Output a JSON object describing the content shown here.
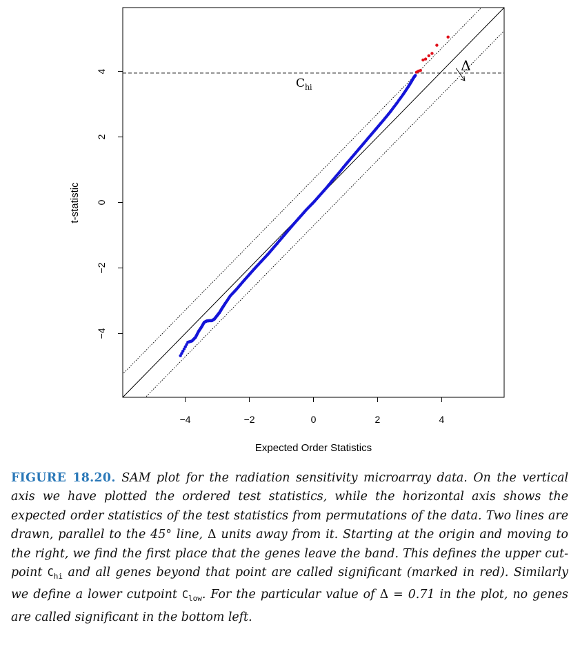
{
  "chart_data": {
    "type": "scatter",
    "xlabel": "Expected Order Statistics",
    "ylabel": "t-statistic",
    "xlim": [
      -5.95,
      5.95
    ],
    "ylim": [
      -5.95,
      5.95
    ],
    "x_ticks": [
      -4,
      -2,
      0,
      2,
      4
    ],
    "y_ticks": [
      -4,
      -2,
      0,
      2,
      4
    ],
    "grid": false,
    "delta": 0.71,
    "c_hi": 3.95,
    "c_hi_label": "C",
    "c_hi_sub": "hi",
    "delta_label": "Δ",
    "colors": {
      "significant": "#e0101a",
      "not_significant": "#1414d8",
      "lines": "#000000"
    },
    "band_lines": [
      {
        "name": "45-degree",
        "intercept": 0
      },
      {
        "name": "upper band",
        "intercept": 0.71
      },
      {
        "name": "lower band",
        "intercept": -0.71
      }
    ],
    "series": [
      {
        "category": "not significant",
        "points": [
          [
            -4.15,
            -4.68
          ],
          [
            -3.92,
            -4.27
          ],
          [
            -3.79,
            -4.23
          ],
          [
            -3.68,
            -4.12
          ],
          [
            -3.58,
            -3.93
          ],
          [
            -3.49,
            -3.8
          ],
          [
            -3.41,
            -3.66
          ],
          [
            -3.33,
            -3.62
          ],
          [
            -3.25,
            -3.61
          ],
          [
            -3.17,
            -3.61
          ],
          [
            -3.09,
            -3.56
          ],
          [
            -3.01,
            -3.46
          ],
          [
            -2.93,
            -3.36
          ],
          [
            -2.85,
            -3.23
          ],
          [
            -2.75,
            -3.08
          ],
          [
            -2.6,
            -2.86
          ],
          [
            -2.4,
            -2.65
          ],
          [
            -2.2,
            -2.42
          ],
          [
            -2.0,
            -2.2
          ],
          [
            -1.8,
            -1.98
          ],
          [
            -1.6,
            -1.77
          ],
          [
            -1.4,
            -1.56
          ],
          [
            -1.2,
            -1.33
          ],
          [
            -1.0,
            -1.1
          ],
          [
            -0.8,
            -0.87
          ],
          [
            -0.6,
            -0.64
          ],
          [
            -0.4,
            -0.42
          ],
          [
            -0.2,
            -0.2
          ],
          [
            0.0,
            0.0
          ],
          [
            0.2,
            0.22
          ],
          [
            0.4,
            0.44
          ],
          [
            0.6,
            0.68
          ],
          [
            0.8,
            0.91
          ],
          [
            1.0,
            1.15
          ],
          [
            1.2,
            1.38
          ],
          [
            1.4,
            1.61
          ],
          [
            1.6,
            1.84
          ],
          [
            1.8,
            2.07
          ],
          [
            2.0,
            2.3
          ],
          [
            2.2,
            2.53
          ],
          [
            2.4,
            2.77
          ],
          [
            2.6,
            3.03
          ],
          [
            2.8,
            3.3
          ],
          [
            2.95,
            3.52
          ],
          [
            3.05,
            3.68
          ],
          [
            3.12,
            3.8
          ],
          [
            3.18,
            3.88
          ]
        ]
      },
      {
        "category": "significant",
        "points": [
          [
            3.22,
            3.98
          ],
          [
            3.28,
            4.01
          ],
          [
            3.34,
            4.03
          ],
          [
            3.42,
            4.35
          ],
          [
            3.5,
            4.38
          ],
          [
            3.6,
            4.48
          ],
          [
            3.7,
            4.55
          ],
          [
            3.85,
            4.8
          ],
          [
            4.2,
            5.05
          ]
        ]
      }
    ]
  },
  "caption": {
    "label": "FIGURE 18.20.",
    "parts": {
      "p1": " SAM plot for the radiation sensitivity microarray data. On the vertical axis we have plotted the ordered test statistics, while the horizontal axis shows the expected order statistics of the test statistics from permutations of the data. Two lines are drawn, parallel to the 45",
      "degree": "°",
      "p2": " line, ",
      "delta_symbol": "Δ",
      "p3": " units away from it. Starting at the origin and moving to the right, we find the first place that the genes leave the band. This defines the upper cut-point ",
      "c_main": "C",
      "c_hi_sub": "hi",
      "p4": " and all genes beyond that point are called significant (marked in red). Similarly we define a lower cutpoint ",
      "c_low_sub": "low",
      "p5": ". For the particular value of ",
      "p6": " = 0.71 in the plot, no genes are called significant in the bottom left."
    }
  }
}
